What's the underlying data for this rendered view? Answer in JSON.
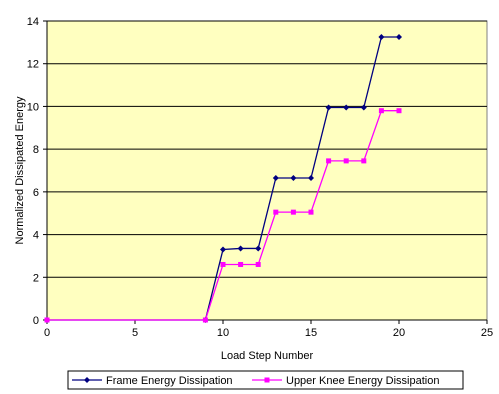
{
  "chart_data": {
    "type": "line",
    "title": "",
    "xlabel": "Load Step Number",
    "ylabel": "Normalized Dissipated Energy",
    "xlim": [
      0,
      25
    ],
    "ylim": [
      0,
      14
    ],
    "xticks": [
      0,
      5,
      10,
      15,
      20,
      25
    ],
    "yticks": [
      0,
      2,
      4,
      6,
      8,
      10,
      12,
      14
    ],
    "xtick_labels": [
      "0",
      "5",
      "10",
      "15",
      "20",
      "25"
    ],
    "ytick_labels": [
      "0",
      "2",
      "4",
      "6",
      "8",
      "10",
      "12",
      "14"
    ],
    "grid": "horizontal",
    "legend_position": "bottom",
    "plot_background": "#ffffc0",
    "series": [
      {
        "name": "Frame Energy Dissipation",
        "color": "#000080",
        "marker": "diamond",
        "x": [
          0,
          9,
          10,
          11,
          12,
          13,
          14,
          15,
          16,
          17,
          18,
          19,
          20
        ],
        "y": [
          0,
          0,
          3.3,
          3.35,
          3.35,
          6.65,
          6.65,
          6.65,
          9.95,
          9.95,
          9.95,
          13.25,
          13.25
        ]
      },
      {
        "name": "Upper Knee Energy Dissipation",
        "color": "#ff00ff",
        "marker": "square",
        "x": [
          0,
          9,
          10,
          11,
          12,
          13,
          14,
          15,
          16,
          17,
          18,
          19,
          20
        ],
        "y": [
          0,
          0,
          2.6,
          2.6,
          2.6,
          5.05,
          5.05,
          5.05,
          7.45,
          7.45,
          7.45,
          9.8,
          9.8
        ]
      }
    ]
  }
}
